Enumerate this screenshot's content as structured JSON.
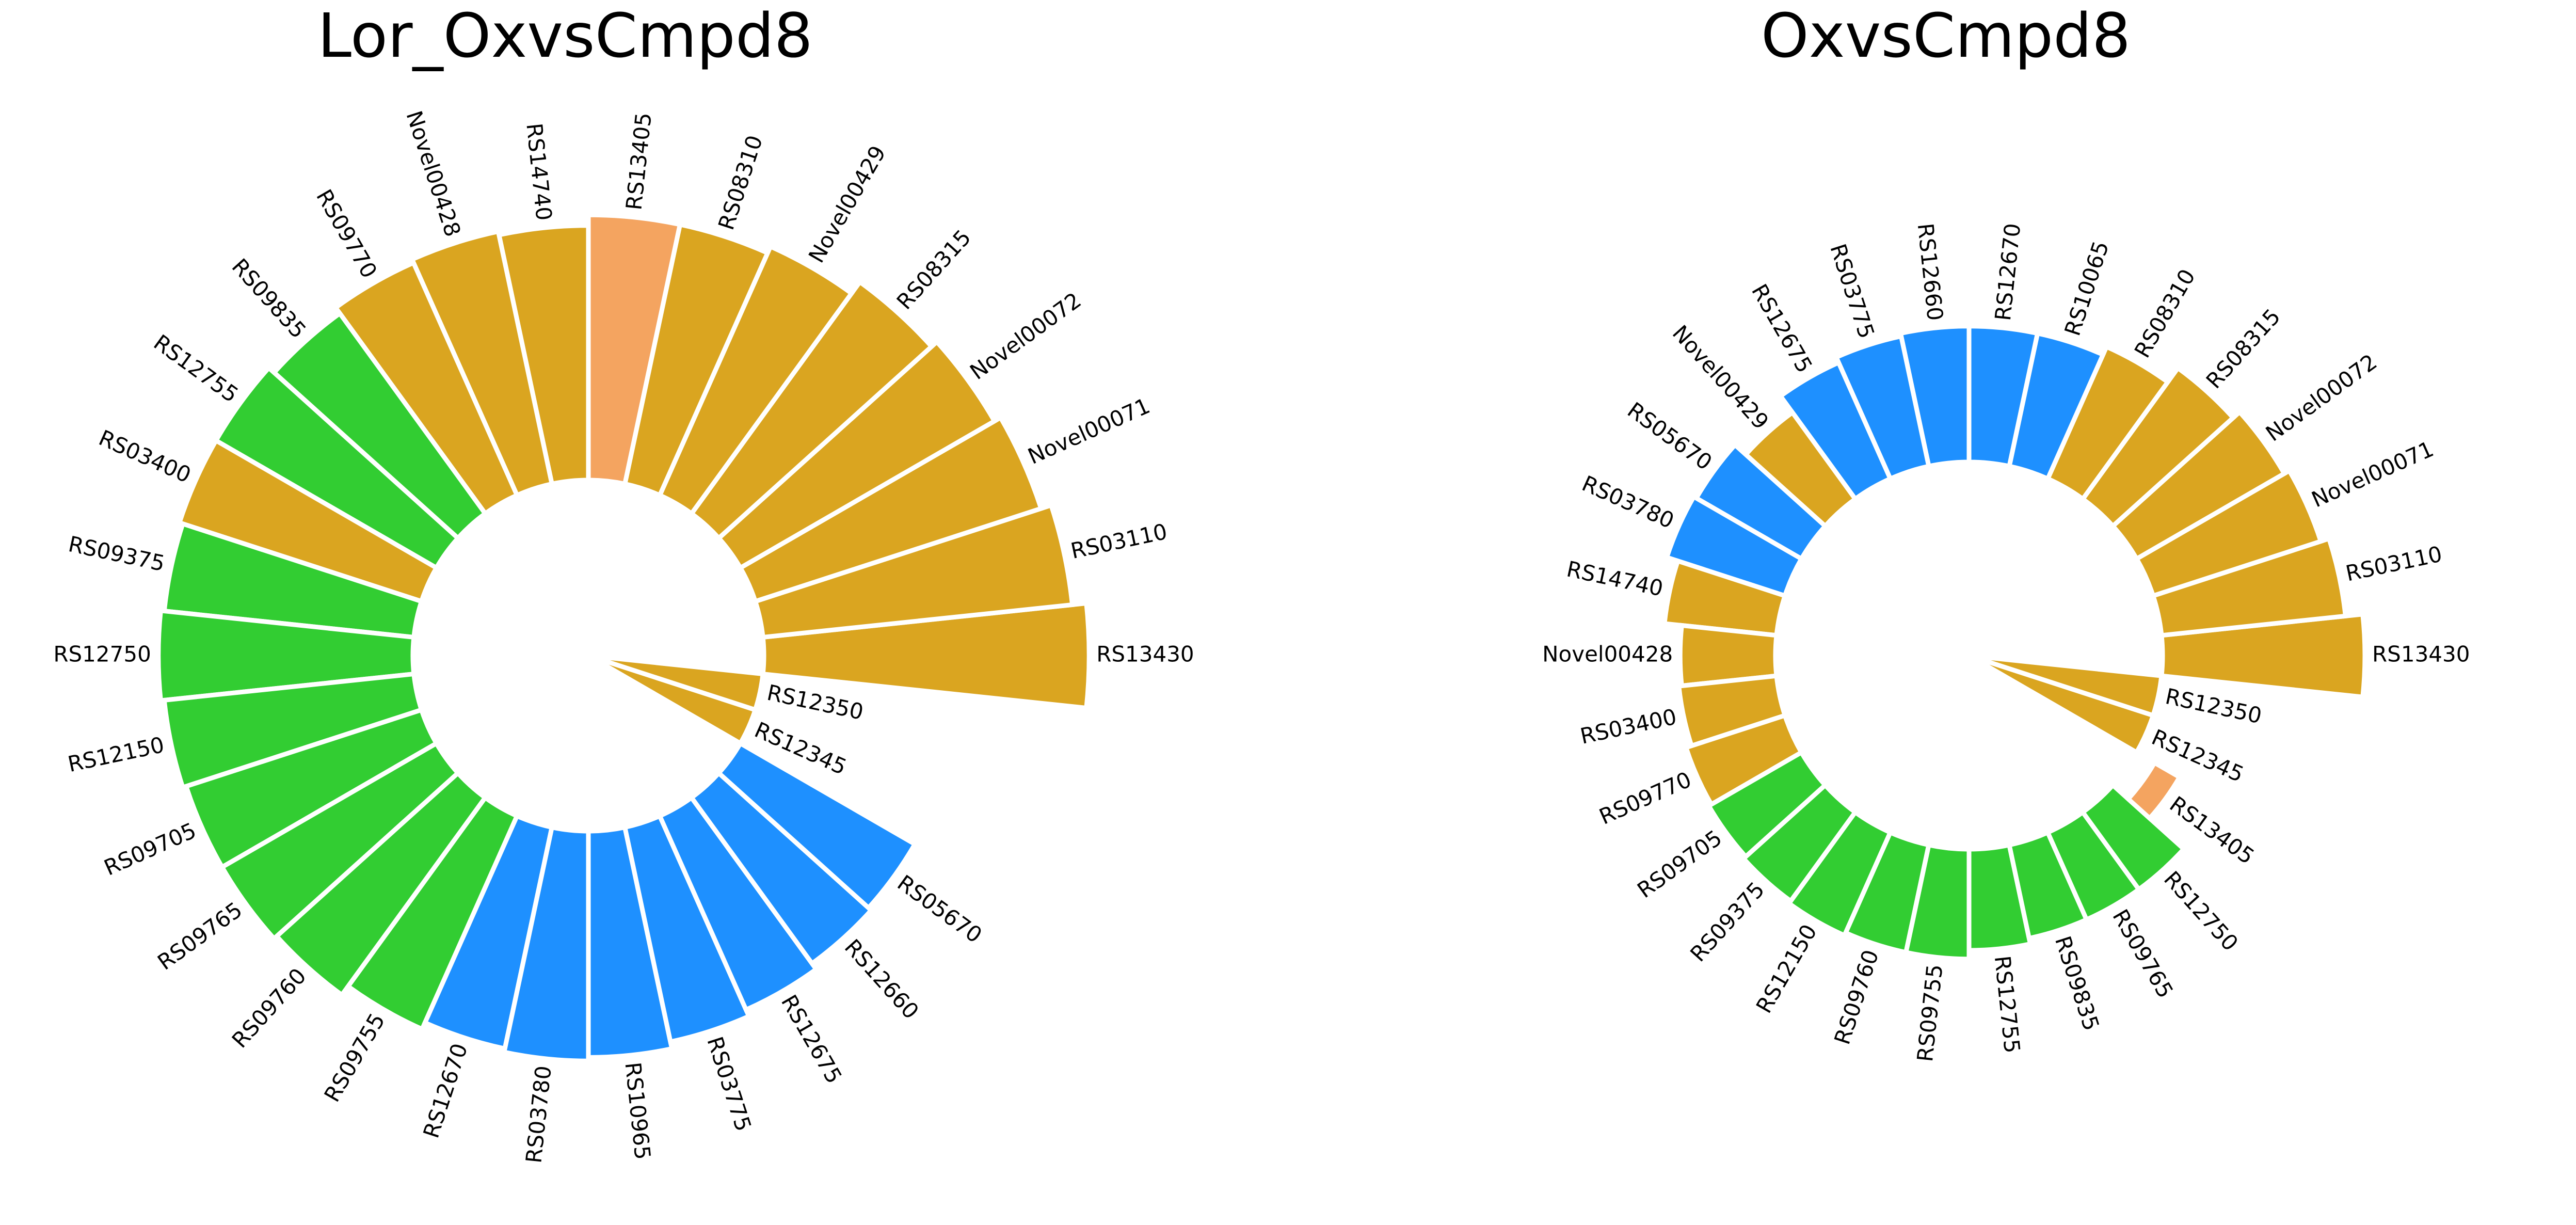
{
  "colors": {
    "goldenrod": "#DAA520",
    "green": "#32CD32",
    "blue": "#1E90FF",
    "orange": "#F4A460"
  },
  "chart_data": [
    {
      "type": "bar",
      "subtype": "circular-barplot",
      "title": "Lor_OxvsCmpd8",
      "inner_radius": 1.0,
      "bars": [
        {
          "label": "RS13430",
          "value": 0.92,
          "color": "goldenrod"
        },
        {
          "label": "RS03110",
          "value": 0.88,
          "color": "goldenrod"
        },
        {
          "label": "Novel00071",
          "value": 0.85,
          "color": "goldenrod"
        },
        {
          "label": "Novel00072",
          "value": 0.83,
          "color": "goldenrod"
        },
        {
          "label": "RS08315",
          "value": 0.81,
          "color": "goldenrod"
        },
        {
          "label": "Novel00429",
          "value": 0.77,
          "color": "goldenrod"
        },
        {
          "label": "RS08310",
          "value": 0.75,
          "color": "goldenrod"
        },
        {
          "label": "RS13405",
          "value": 0.75,
          "color": "orange"
        },
        {
          "label": "RS14740",
          "value": 0.72,
          "color": "goldenrod"
        },
        {
          "label": "Novel00428",
          "value": 0.73,
          "color": "goldenrod"
        },
        {
          "label": "RS09770",
          "value": 0.72,
          "color": "goldenrod"
        },
        {
          "label": "RS09835",
          "value": 0.7,
          "color": "green"
        },
        {
          "label": "RS12755",
          "value": 0.72,
          "color": "green"
        },
        {
          "label": "RS03400",
          "value": 0.72,
          "color": "goldenrod"
        },
        {
          "label": "RS09375",
          "value": 0.71,
          "color": "green"
        },
        {
          "label": "RS12750",
          "value": 0.72,
          "color": "green"
        },
        {
          "label": "RS12150",
          "value": 0.71,
          "color": "green"
        },
        {
          "label": "RS09705",
          "value": 0.7,
          "color": "green"
        },
        {
          "label": "RS09765",
          "value": 0.7,
          "color": "green"
        },
        {
          "label": "RS09760",
          "value": 0.69,
          "color": "green"
        },
        {
          "label": "RS09755",
          "value": 0.66,
          "color": "green"
        },
        {
          "label": "RS12670",
          "value": 0.64,
          "color": "blue"
        },
        {
          "label": "RS03780",
          "value": 0.65,
          "color": "blue"
        },
        {
          "label": "RS10965",
          "value": 0.64,
          "color": "blue"
        },
        {
          "label": "RS03775",
          "value": 0.62,
          "color": "blue"
        },
        {
          "label": "RS12675",
          "value": 0.6,
          "color": "blue"
        },
        {
          "label": "RS12660",
          "value": 0.58,
          "color": "blue"
        },
        {
          "label": "RS05670",
          "value": 0.57,
          "color": "blue"
        },
        {
          "label": "RS12345",
          "value": 0.08,
          "color": "goldenrod"
        },
        {
          "label": "RS12350",
          "value": 0.05,
          "color": "goldenrod"
        }
      ]
    },
    {
      "type": "bar",
      "subtype": "circular-barplot",
      "title": "OxvsCmpd8",
      "inner_radius": 1.0,
      "bars": [
        {
          "label": "RS13430",
          "value": 0.7,
          "color": "goldenrod"
        },
        {
          "label": "RS03110",
          "value": 0.64,
          "color": "goldenrod"
        },
        {
          "label": "Novel00071",
          "value": 0.61,
          "color": "goldenrod"
        },
        {
          "label": "Novel00072",
          "value": 0.59,
          "color": "goldenrod"
        },
        {
          "label": "RS08315",
          "value": 0.56,
          "color": "goldenrod"
        },
        {
          "label": "RS08310",
          "value": 0.5,
          "color": "goldenrod"
        },
        {
          "label": "RS10065",
          "value": 0.47,
          "color": "blue"
        },
        {
          "label": "RS12670",
          "value": 0.47,
          "color": "blue"
        },
        {
          "label": "RS12660",
          "value": 0.47,
          "color": "blue"
        },
        {
          "label": "RS03775",
          "value": 0.46,
          "color": "blue"
        },
        {
          "label": "RS12675",
          "value": 0.44,
          "color": "blue"
        },
        {
          "label": "Novel00429",
          "value": 0.37,
          "color": "goldenrod"
        },
        {
          "label": "RS05670",
          "value": 0.42,
          "color": "blue"
        },
        {
          "label": "RS03780",
          "value": 0.43,
          "color": "blue"
        },
        {
          "label": "RS14740",
          "value": 0.39,
          "color": "goldenrod"
        },
        {
          "label": "Novel00428",
          "value": 0.33,
          "color": "goldenrod"
        },
        {
          "label": "RS03400",
          "value": 0.34,
          "color": "goldenrod"
        },
        {
          "label": "RS09770",
          "value": 0.36,
          "color": "goldenrod"
        },
        {
          "label": "RS09705",
          "value": 0.37,
          "color": "green"
        },
        {
          "label": "RS09375",
          "value": 0.38,
          "color": "green"
        },
        {
          "label": "RS12150",
          "value": 0.39,
          "color": "green"
        },
        {
          "label": "RS09760",
          "value": 0.38,
          "color": "green"
        },
        {
          "label": "RS09755",
          "value": 0.38,
          "color": "green"
        },
        {
          "label": "RS12755",
          "value": 0.35,
          "color": "green"
        },
        {
          "label": "RS09835",
          "value": 0.33,
          "color": "green"
        },
        {
          "label": "RS09765",
          "value": 0.33,
          "color": "green"
        },
        {
          "label": "RS12750",
          "value": 0.33,
          "color": "green"
        },
        {
          "label": "RS13405",
          "value": 0.1,
          "color": "orange",
          "floating": true
        },
        {
          "label": "RS12345",
          "value": 0.08,
          "color": "goldenrod"
        },
        {
          "label": "RS12350",
          "value": 0.05,
          "color": "goldenrod"
        }
      ]
    }
  ]
}
